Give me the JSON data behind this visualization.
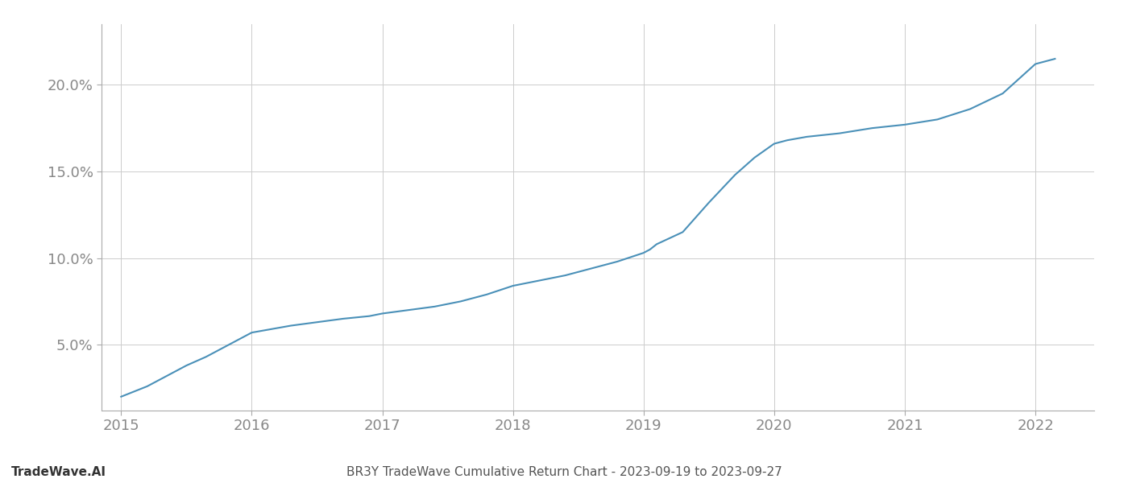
{
  "x": [
    2015.0,
    2015.1,
    2015.2,
    2015.35,
    2015.5,
    2015.65,
    2015.8,
    2016.0,
    2016.15,
    2016.3,
    2016.5,
    2016.7,
    2016.9,
    2017.0,
    2017.2,
    2017.4,
    2017.6,
    2017.8,
    2018.0,
    2018.2,
    2018.4,
    2018.6,
    2018.8,
    2019.0,
    2019.05,
    2019.1,
    2019.3,
    2019.5,
    2019.7,
    2019.85,
    2020.0,
    2020.1,
    2020.25,
    2020.5,
    2020.75,
    2021.0,
    2021.25,
    2021.5,
    2021.75,
    2022.0,
    2022.15
  ],
  "y": [
    2.0,
    2.3,
    2.6,
    3.2,
    3.8,
    4.3,
    4.9,
    5.7,
    5.9,
    6.1,
    6.3,
    6.5,
    6.65,
    6.8,
    7.0,
    7.2,
    7.5,
    7.9,
    8.4,
    8.7,
    9.0,
    9.4,
    9.8,
    10.3,
    10.5,
    10.8,
    11.5,
    13.2,
    14.8,
    15.8,
    16.6,
    16.8,
    17.0,
    17.2,
    17.5,
    17.7,
    18.0,
    18.6,
    19.5,
    21.2,
    21.5
  ],
  "line_color": "#4a90b8",
  "line_width": 1.5,
  "background_color": "#ffffff",
  "grid_color": "#cccccc",
  "bottom_left_text": "TradeWave.AI",
  "bottom_center_text": "BR3Y TradeWave Cumulative Return Chart - 2023-09-19 to 2023-09-27",
  "ytick_labels": [
    "5.0%",
    "10.0%",
    "15.0%",
    "20.0%"
  ],
  "ytick_values": [
    5.0,
    10.0,
    15.0,
    20.0
  ],
  "xtick_values": [
    2015,
    2016,
    2017,
    2018,
    2019,
    2020,
    2021,
    2022
  ],
  "xlim": [
    2014.85,
    2022.45
  ],
  "ylim": [
    1.2,
    23.5
  ]
}
